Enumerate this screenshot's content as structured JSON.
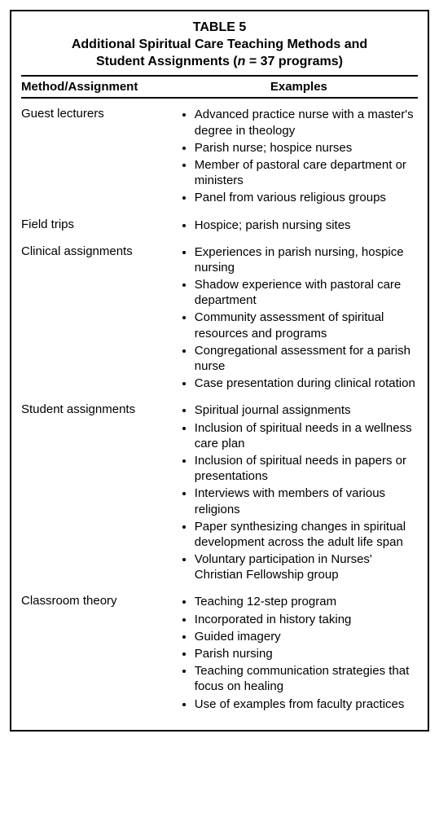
{
  "table": {
    "label": "TABLE 5",
    "title_line1": "Additional Spiritual Care Teaching Methods and",
    "title_line2_prefix": "Student Assignments (",
    "title_n": "n",
    "title_line2_suffix": " = 37 programs)",
    "columns": {
      "method": "Method/Assignment",
      "examples": "Examples"
    },
    "rows": [
      {
        "method": "Guest lecturers",
        "examples": [
          "Advanced practice nurse with a master's degree in theology",
          "Parish nurse; hospice nurses",
          "Member of pastoral care department or ministers",
          "Panel from various religious groups"
        ]
      },
      {
        "method": "Field trips",
        "examples": [
          "Hospice; parish nursing sites"
        ]
      },
      {
        "method": "Clinical assignments",
        "examples": [
          "Experiences in parish nursing, hospice nursing",
          "Shadow experience with pastoral care department",
          "Community assessment of spiritual resources and programs",
          "Congregational assessment for a parish nurse",
          "Case presentation during clinical rotation"
        ]
      },
      {
        "method": "Student assignments",
        "examples": [
          "Spiritual journal assignments",
          "Inclusion of spiritual needs in a wellness care plan",
          "Inclusion of spiritual needs in papers or presentations",
          "Interviews with members of various religions",
          "Paper synthesizing changes in spiritual development across the adult life span",
          "Voluntary participation in Nurses' Christian Fellowship group"
        ]
      },
      {
        "method": "Classroom theory",
        "examples": [
          "Teaching 12-step program",
          "Incorporated in history taking",
          "Guided imagery",
          "Parish nursing",
          "Teaching communication strategies that focus on healing",
          "Use of examples from faculty practices"
        ]
      }
    ]
  },
  "styling": {
    "border_color": "#000000",
    "background": "#ffffff",
    "font_family": "Helvetica, Arial, sans-serif",
    "header_fontsize_pt": 12,
    "body_fontsize_pt": 11,
    "col_widths_pct": [
      40,
      60
    ]
  }
}
